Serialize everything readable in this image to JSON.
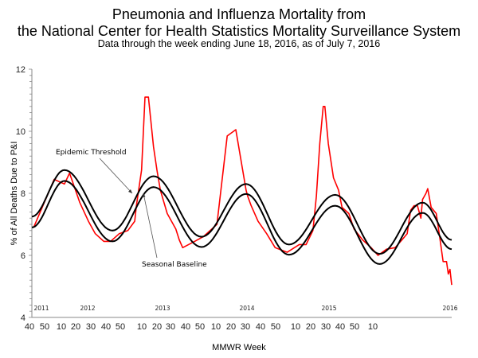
{
  "chart_data": {
    "type": "line",
    "title": "Pneumonia and Influenza Mortality from",
    "title_line2": "the National Center for Health Statistics Mortality Surveillance System",
    "subtitle": "Data through the week ending June 18, 2016, as of July 7, 2016",
    "xlabel": "MMWR Week",
    "ylabel": "% of All Deaths Due to P&I",
    "ylim": [
      4,
      12
    ],
    "y_ticks": [
      "4",
      "6",
      "8",
      "10",
      "12"
    ],
    "x_tick_labels": [
      "40",
      "50",
      "10",
      "20",
      "30",
      "40",
      "50",
      "10",
      "20",
      "30",
      "40",
      "50",
      "10",
      "20",
      "30",
      "40",
      "50",
      "10",
      "20",
      "30",
      "40",
      "50",
      "10"
    ],
    "year_labels": [
      "2011",
      "2012",
      "2013",
      "2014",
      "2015",
      "2016"
    ],
    "x_range": [
      "2011-40",
      "2016-24"
    ],
    "grid": false,
    "annotations": {
      "threshold": "Epidemic Threshold",
      "baseline": "Seasonal Baseline"
    },
    "series": [
      {
        "key": "observed",
        "color": "#ff0000",
        "points": [
          [
            "2011-41",
            6.9
          ],
          [
            "2012-01",
            8.45
          ],
          [
            "2012-07",
            8.3
          ],
          [
            "2012-10",
            8.65
          ],
          [
            "2012-16",
            7.7
          ],
          [
            "2012-21",
            7.1
          ],
          [
            "2012-25",
            6.7
          ],
          [
            "2012-30",
            6.45
          ],
          [
            "2012-34",
            6.45
          ],
          [
            "2012-39",
            6.7
          ],
          [
            "2012-44",
            6.8
          ],
          [
            "2012-48",
            7.1
          ],
          [
            "2012-49",
            7.6
          ],
          [
            "2012-52",
            8.75
          ],
          [
            "2013-02",
            11.1
          ],
          [
            "2013-04",
            11.1
          ],
          [
            "2013-07",
            9.5
          ],
          [
            "2013-09",
            8.75
          ],
          [
            "2013-11",
            8.1
          ],
          [
            "2013-15",
            7.35
          ],
          [
            "2013-20",
            6.85
          ],
          [
            "2013-22",
            6.5
          ],
          [
            "2013-24",
            6.25
          ],
          [
            "2013-31",
            6.45
          ],
          [
            "2013-36",
            6.6
          ],
          [
            "2013-41",
            6.85
          ],
          [
            "2013-44",
            7.0
          ],
          [
            "2013-50",
            9.85
          ],
          [
            "2014-03",
            10.05
          ],
          [
            "2014-07",
            8.75
          ],
          [
            "2014-09",
            8.1
          ],
          [
            "2014-10",
            7.9
          ],
          [
            "2014-12",
            7.6
          ],
          [
            "2014-16",
            7.1
          ],
          [
            "2014-21",
            6.7
          ],
          [
            "2014-26",
            6.25
          ],
          [
            "2014-33",
            6.1
          ],
          [
            "2014-40",
            6.35
          ],
          [
            "2014-44",
            6.35
          ],
          [
            "2014-48",
            6.8
          ],
          [
            "2014-50",
            7.9
          ],
          [
            "2014-52",
            9.6
          ],
          [
            "2015-01",
            10.8
          ],
          [
            "2015-02",
            10.8
          ],
          [
            "2015-04",
            9.6
          ],
          [
            "2015-07",
            8.5
          ],
          [
            "2015-10",
            8.1
          ],
          [
            "2015-12",
            7.55
          ],
          [
            "2015-16",
            7.35
          ],
          [
            "2015-19",
            6.85
          ],
          [
            "2015-24",
            6.5
          ],
          [
            "2015-29",
            6.25
          ],
          [
            "2015-33",
            6.0
          ],
          [
            "2015-38",
            6.2
          ],
          [
            "2015-43",
            6.25
          ],
          [
            "2015-47",
            6.5
          ],
          [
            "2015-50",
            6.7
          ],
          [
            "2015-52",
            7.45
          ],
          [
            "2016-02",
            7.6
          ],
          [
            "2016-04",
            7.6
          ],
          [
            "2016-06",
            7.2
          ],
          [
            "2016-07",
            7.8
          ],
          [
            "2016-09",
            8.0
          ],
          [
            "2016-10",
            8.15
          ],
          [
            "2016-12",
            7.55
          ],
          [
            "2016-15",
            7.35
          ],
          [
            "2016-17",
            6.6
          ],
          [
            "2016-19",
            5.8
          ],
          [
            "2016-21",
            5.8
          ],
          [
            "2016-22",
            5.4
          ],
          [
            "2016-23",
            5.55
          ],
          [
            "2016-24",
            5.05
          ]
        ]
      },
      {
        "key": "threshold",
        "name": "Epidemic Threshold",
        "color": "#000000",
        "points": [
          [
            "2011-40",
            7.25
          ],
          [
            "2012-07",
            8.75
          ],
          [
            "2012-35",
            6.8
          ],
          [
            "2013-07",
            8.55
          ],
          [
            "2013-35",
            6.6
          ],
          [
            "2014-09",
            8.3
          ],
          [
            "2014-34",
            6.35
          ],
          [
            "2015-08",
            7.95
          ],
          [
            "2015-34",
            6.05
          ],
          [
            "2016-07",
            7.7
          ],
          [
            "2016-24",
            6.5
          ]
        ]
      },
      {
        "key": "baseline",
        "name": "Seasonal Baseline",
        "color": "#000000",
        "points": [
          [
            "2011-40",
            6.9
          ],
          [
            "2012-07",
            8.4
          ],
          [
            "2012-35",
            6.45
          ],
          [
            "2013-07",
            8.2
          ],
          [
            "2013-35",
            6.27
          ],
          [
            "2014-09",
            7.98
          ],
          [
            "2014-34",
            6.02
          ],
          [
            "2015-08",
            7.6
          ],
          [
            "2015-34",
            5.72
          ],
          [
            "2016-07",
            7.37
          ],
          [
            "2016-24",
            6.2
          ]
        ]
      }
    ]
  }
}
